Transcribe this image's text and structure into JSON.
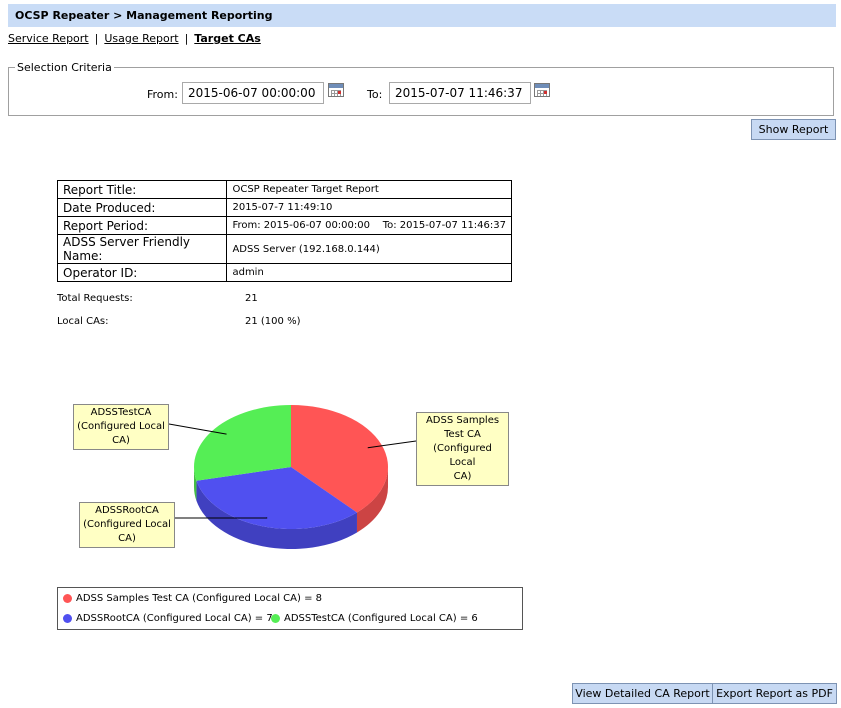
{
  "header": {
    "title": "OCSP Repeater > Management Reporting"
  },
  "nav": {
    "links": [
      {
        "label": "Service Report"
      },
      {
        "label": "Usage Report"
      },
      {
        "label": "Target CAs"
      }
    ],
    "separator": "|"
  },
  "criteria": {
    "legend": "Selection Criteria",
    "from_label": "From:",
    "from_value": "2015-06-07 00:00:00",
    "to_label": "To:",
    "to_value": "2015-07-07 11:46:37"
  },
  "buttons": {
    "show_report": "Show Report",
    "view_detailed": "View Detailed CA Report",
    "export_pdf": "Export Report as PDF"
  },
  "report_info": [
    {
      "key": "Report Title:",
      "value": "OCSP Repeater Target Report"
    },
    {
      "key": "Date Produced:",
      "value": "2015-07-7 11:49:10"
    },
    {
      "key": "Report Period:",
      "value": "From: 2015-06-07 00:00:00    To: 2015-07-07 11:46:37"
    },
    {
      "key": "ADSS Server Friendly Name:",
      "value": "ADSS Server (192.168.0.144)"
    },
    {
      "key": "Operator ID:",
      "value": "admin"
    }
  ],
  "stats": {
    "total_label": "Total Requests:",
    "total_value": "21",
    "local_label": "Local CAs:",
    "local_value": "21 (100 %)"
  },
  "chart_data": {
    "type": "pie",
    "slices": [
      {
        "label": "ADSS Samples Test CA (Configured Local CA)",
        "value": 8,
        "color": "#ff5555"
      },
      {
        "label": "ADSSRootCA (Configured Local CA)",
        "value": 7,
        "color": "#5050f0"
      },
      {
        "label": "ADSSTestCA (Configured Local CA)",
        "value": 6,
        "color": "#55ee55"
      }
    ],
    "callouts": [
      {
        "lines": [
          "ADSS Samples",
          "Test CA",
          "(Configured Local",
          "CA)"
        ]
      },
      {
        "lines": [
          "ADSSRootCA",
          "(Configured Local",
          "CA)"
        ]
      },
      {
        "lines": [
          "ADSSTestCA",
          "(Configured Local",
          "CA)"
        ]
      }
    ],
    "legend": [
      "ADSS Samples Test CA (Configured Local CA) = 8",
      "ADSSRootCA (Configured Local CA) = 7",
      "ADSSTestCA (Configured Local CA) = 6"
    ]
  }
}
